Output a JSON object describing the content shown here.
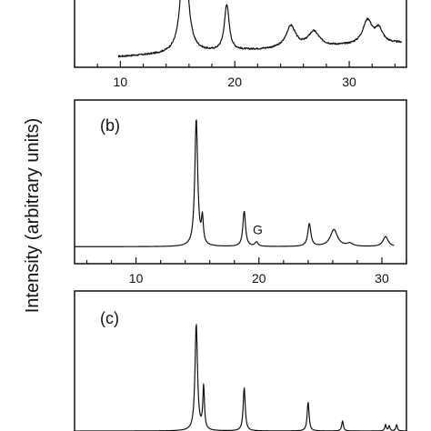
{
  "figure": {
    "ylabel": "Intensity  (arbitrary units)"
  },
  "chart_data": [
    {
      "type": "line",
      "panel_label": "",
      "xlim": [
        6,
        35
      ],
      "ylim": [
        0,
        1
      ],
      "xticks": [
        "10",
        "20",
        "30"
      ],
      "xtick_values": [
        10,
        20,
        30
      ],
      "series": [
        {
          "x_start": 9.8,
          "x_end": 34.6,
          "baseline": 0.1,
          "baseline_end": 0.3,
          "noise": 0.012,
          "peaks": [
            {
              "x": 15.6,
              "height": 1.7,
              "width": 0.35
            },
            {
              "x": 19.3,
              "height": 0.68,
              "width": 0.25
            },
            {
              "x": 24.9,
              "height": 0.32,
              "width": 0.5
            },
            {
              "x": 26.9,
              "height": 0.22,
              "width": 0.6
            },
            {
              "x": 31.6,
              "height": 0.35,
              "width": 0.5
            },
            {
              "x": 32.6,
              "height": 0.2,
              "width": 0.4
            }
          ]
        }
      ],
      "annotations": []
    },
    {
      "type": "line",
      "panel_label": "(b)",
      "xlim": [
        5,
        32
      ],
      "ylim": [
        0,
        1
      ],
      "xticks": [
        "10",
        "20",
        "30"
      ],
      "xtick_values": [
        10,
        20,
        30
      ],
      "series": [
        {
          "x_start": 5,
          "x_end": 31,
          "baseline": 0.03,
          "baseline_end": 0.03,
          "noise": 0,
          "peaks": [
            {
              "x": 14.9,
              "height": 0.9,
              "width": 0.14
            },
            {
              "x": 15.4,
              "height": 0.18,
              "width": 0.09
            },
            {
              "x": 18.8,
              "height": 0.25,
              "width": 0.13
            },
            {
              "x": 19.8,
              "height": 0.03,
              "width": 0.15
            },
            {
              "x": 24.1,
              "height": 0.16,
              "width": 0.15
            },
            {
              "x": 26.1,
              "height": 0.12,
              "width": 0.35
            },
            {
              "x": 27.4,
              "height": 0.02,
              "width": 0.3
            },
            {
              "x": 30.3,
              "height": 0.07,
              "width": 0.25
            }
          ]
        }
      ],
      "annotations": [
        {
          "text": "G",
          "x": 19.9,
          "y": 0.12
        }
      ]
    },
    {
      "type": "line",
      "panel_label": "(c)",
      "xlim": [
        5,
        32
      ],
      "ylim": [
        0,
        1
      ],
      "xticks": [],
      "xtick_values": [],
      "series": [
        {
          "x_start": 5,
          "x_end": 32,
          "baseline": 0.0,
          "baseline_end": 0.0,
          "noise": 0,
          "peaks": [
            {
              "x": 14.9,
              "height": 0.84,
              "width": 0.12
            },
            {
              "x": 15.5,
              "height": 0.34,
              "width": 0.08
            },
            {
              "x": 18.8,
              "height": 0.34,
              "width": 0.1
            },
            {
              "x": 24.0,
              "height": 0.23,
              "width": 0.09
            },
            {
              "x": 26.8,
              "height": 0.08,
              "width": 0.08
            },
            {
              "x": 30.3,
              "height": 0.05,
              "width": 0.07
            },
            {
              "x": 30.6,
              "height": 0.04,
              "width": 0.07
            },
            {
              "x": 31.2,
              "height": 0.05,
              "width": 0.07
            }
          ]
        }
      ],
      "annotations": []
    }
  ]
}
